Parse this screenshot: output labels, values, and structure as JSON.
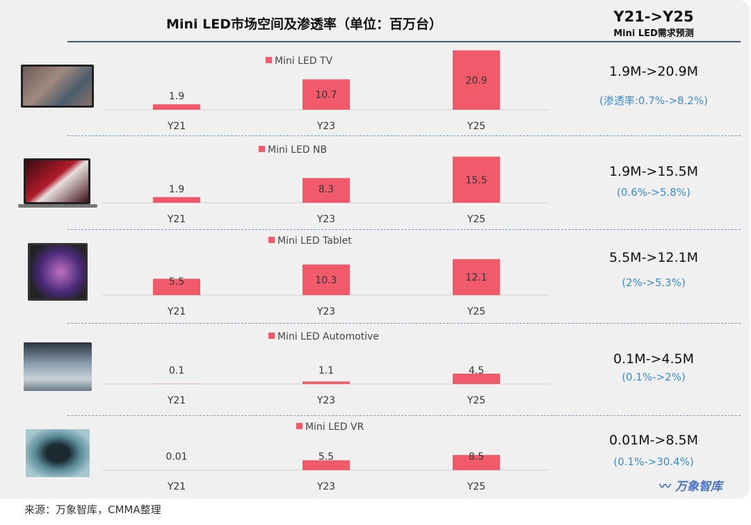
{
  "title": "Mini LED市场空间及渗透率（单位：百万台）",
  "right_header": {
    "line1": "Y21->Y25",
    "line2": "Mini LED需求预测"
  },
  "colors": {
    "bar": "#f05a6a",
    "percent_text": "#3d8ccc",
    "divider": "#6b9bc8"
  },
  "chart_data": [
    {
      "type": "bar",
      "legend": "Mini LED TV",
      "categories": [
        "Y21",
        "Y23",
        "Y25"
      ],
      "values": [
        1.9,
        10.7,
        20.9
      ],
      "ylim": [
        0,
        22
      ],
      "image": "tv-image",
      "summary": "1.9M->20.9M",
      "penetration": "(渗透率:0.7%->8.2%)"
    },
    {
      "type": "bar",
      "legend": "Mini LED NB",
      "categories": [
        "Y21",
        "Y23",
        "Y25"
      ],
      "values": [
        1.9,
        8.3,
        15.5
      ],
      "ylim": [
        0,
        21
      ],
      "image": "laptop-image",
      "summary": "1.9M->15.5M",
      "penetration": "(0.6%->5.8%)"
    },
    {
      "type": "bar",
      "legend": "Mini LED Tablet",
      "categories": [
        "Y21",
        "Y23",
        "Y25"
      ],
      "values": [
        5.5,
        10.3,
        12.1
      ],
      "ylim": [
        0,
        21
      ],
      "image": "tablet-image",
      "summary": "5.5M->12.1M",
      "penetration": "(2%->5.3%)"
    },
    {
      "type": "bar",
      "legend": "Mini LED Automotive",
      "categories": [
        "Y21",
        "Y23",
        "Y25"
      ],
      "values": [
        0.1,
        1.1,
        4.5
      ],
      "ylim": [
        0,
        27
      ],
      "image": "car-interior-image",
      "summary": "0.1M->4.5M",
      "penetration": "(0.1%->2%)"
    },
    {
      "type": "bar",
      "legend": "Mini LED VR",
      "categories": [
        "Y21",
        "Y23",
        "Y25"
      ],
      "values": [
        0.01,
        5.5,
        8.5
      ],
      "ylim": [
        0,
        35
      ],
      "image": "vr-headset-image",
      "summary": "0.01M->8.5M",
      "penetration": "(0.1%->30.4%)"
    }
  ],
  "watermark": "万象智库",
  "source": "来源：万象智库，CMMA整理"
}
